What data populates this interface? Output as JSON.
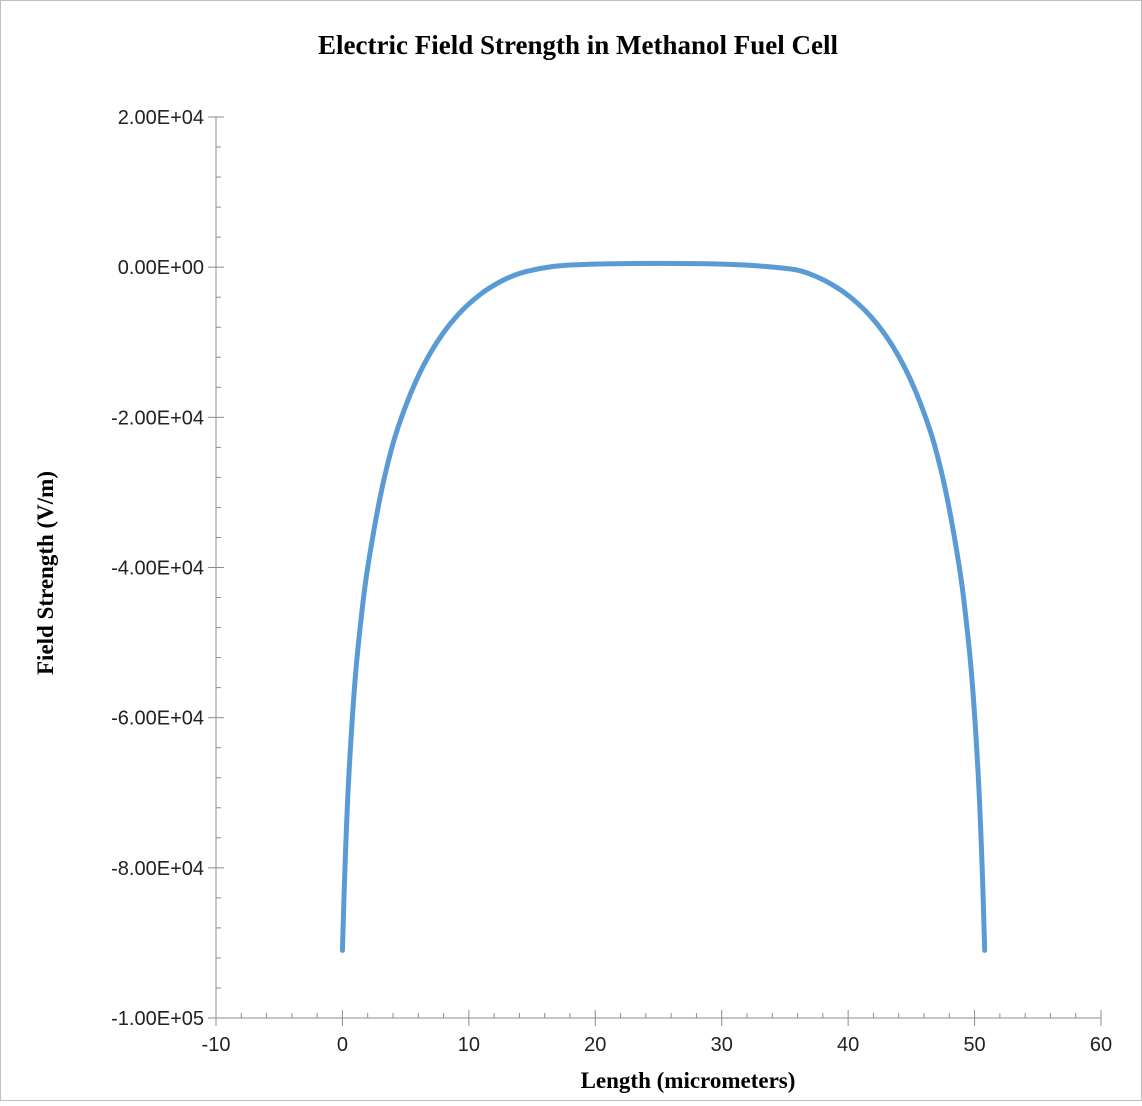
{
  "chart_data": {
    "type": "line",
    "title": "Electric Field Strength in Methanol Fuel Cell",
    "xlabel": "Length (micrometers)",
    "ylabel": "Field Strength (V/m)",
    "xlim": [
      -10,
      60
    ],
    "ylim": [
      -100000,
      20000
    ],
    "x_ticks": [
      -10,
      0,
      10,
      20,
      30,
      40,
      50,
      60
    ],
    "x_tick_labels": [
      "-10",
      "0",
      "10",
      "20",
      "30",
      "40",
      "50",
      "60"
    ],
    "y_ticks": [
      20000,
      0,
      -20000,
      -40000,
      -60000,
      -80000,
      -100000
    ],
    "y_tick_labels": [
      "2.00E+04",
      "0.00E+00",
      "-2.00E+04",
      "-4.00E+04",
      "-6.00E+04",
      "-8.00E+04",
      "-1.00E+05"
    ],
    "grid": false,
    "legend": "none",
    "series": [
      {
        "color": "#5B9BD5",
        "x": [
          0,
          0.2,
          0.5,
          1,
          1.5,
          2,
          3,
          4,
          5,
          6,
          7,
          8,
          9,
          10,
          11,
          12,
          13,
          14,
          15,
          17,
          20,
          25,
          30,
          33,
          36,
          37.8,
          38.8,
          39.8,
          40.8,
          41.8,
          42.8,
          43.8,
          44.8,
          45.8,
          46.8,
          47.8,
          48.8,
          49.3,
          49.8,
          50.3,
          50.6,
          50.8
        ],
        "y": [
          -91000,
          -80000,
          -68000,
          -55000,
          -46500,
          -40000,
          -30500,
          -23500,
          -18500,
          -14500,
          -11300,
          -8700,
          -6600,
          -4900,
          -3500,
          -2400,
          -1500,
          -850,
          -400,
          150,
          400,
          500,
          400,
          150,
          -400,
          -1500,
          -2400,
          -3500,
          -4900,
          -6600,
          -8700,
          -11300,
          -14500,
          -18500,
          -23500,
          -30500,
          -40000,
          -46500,
          -55000,
          -68000,
          -80000,
          -91000
        ]
      }
    ]
  }
}
